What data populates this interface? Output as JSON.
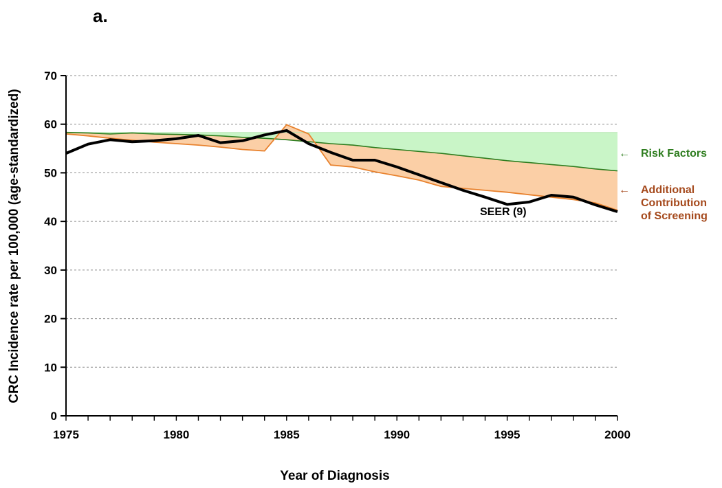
{
  "chart_data": {
    "type": "line",
    "panel_label": "a.",
    "xlabel": "Year of Diagnosis",
    "ylabel": "CRC Incidence rate per  100,000 (age-standardized)",
    "xlim": [
      1975,
      2000
    ],
    "ylim": [
      0,
      70
    ],
    "x_ticks": [
      "1975",
      "1980",
      "1985",
      "1990",
      "1995",
      "2000"
    ],
    "y_ticks": [
      "0",
      "10",
      "20",
      "30",
      "40",
      "50",
      "60",
      "70"
    ],
    "grid": "horizontal dashed",
    "series": [
      {
        "name": "Risk Factors",
        "color": "#2e7d1f",
        "x": [
          1975,
          1976,
          1977,
          1978,
          1979,
          1980,
          1981,
          1982,
          1983,
          1984,
          1985,
          1986,
          1987,
          1988,
          1989,
          1990,
          1991,
          1992,
          1993,
          1994,
          1995,
          1996,
          1997,
          1998,
          1999,
          2000
        ],
        "values": [
          58.3,
          58.2,
          58.0,
          58.2,
          58.0,
          57.9,
          57.8,
          57.6,
          57.3,
          57.1,
          56.8,
          56.4,
          56.0,
          55.7,
          55.2,
          54.8,
          54.4,
          54.0,
          53.5,
          53.0,
          52.5,
          52.1,
          51.7,
          51.3,
          50.8,
          50.4
        ]
      },
      {
        "name": "Additional Contribution of Screening",
        "color": "#e8822e",
        "x": [
          1975,
          1976,
          1977,
          1978,
          1979,
          1980,
          1981,
          1982,
          1983,
          1984,
          1985,
          1986,
          1987,
          1988,
          1989,
          1990,
          1991,
          1992,
          1993,
          1994,
          1995,
          1996,
          1997,
          1998,
          1999,
          2000
        ],
        "values": [
          58.0,
          57.6,
          57.1,
          56.7,
          56.3,
          56.0,
          55.7,
          55.3,
          54.8,
          54.5,
          59.9,
          58.0,
          51.6,
          51.2,
          50.2,
          49.4,
          48.5,
          47.2,
          46.8,
          46.4,
          46.0,
          45.5,
          45.0,
          44.5,
          43.8,
          42.3
        ]
      },
      {
        "name": "SEER (9)",
        "color": "#000000",
        "x": [
          1975,
          1976,
          1977,
          1978,
          1979,
          1980,
          1981,
          1982,
          1983,
          1984,
          1985,
          1986,
          1987,
          1988,
          1989,
          1990,
          1991,
          1992,
          1993,
          1994,
          1995,
          1996,
          1997,
          1998,
          1999,
          2000
        ],
        "values": [
          54.0,
          55.9,
          56.8,
          56.4,
          56.6,
          57.0,
          57.7,
          56.2,
          56.6,
          57.8,
          58.7,
          56.0,
          54.2,
          52.6,
          52.6,
          51.2,
          49.6,
          48.0,
          46.4,
          45.0,
          43.5,
          44.0,
          45.4,
          45.0,
          43.4,
          42.0
        ]
      }
    ],
    "shaded_regions": [
      {
        "name": "Risk Factors",
        "color": "#c9f5c7",
        "from": "baseline 58.3",
        "to": "Risk Factors series"
      },
      {
        "name": "Additional Contribution of Screening",
        "color": "#fbcfa6",
        "from": "Risk Factors series",
        "to": "Additional Contribution of Screening series"
      }
    ],
    "annotations": [
      {
        "text": "Risk Factors",
        "lines": [
          "Risk Factors"
        ],
        "arrow": "←",
        "color": "#2e7d1f",
        "placement": "right of plot, near 54"
      },
      {
        "text": "Additional Contribution of Screening",
        "lines": [
          "Additional",
          "Contribution",
          "of Screening"
        ],
        "arrow": "←",
        "color": "#a5491c",
        "placement": "right of plot, near 46"
      },
      {
        "text": "SEER (9)",
        "lines": [
          "SEER (9)"
        ],
        "color": "#000000",
        "placement": "below black line near 1995"
      }
    ]
  }
}
